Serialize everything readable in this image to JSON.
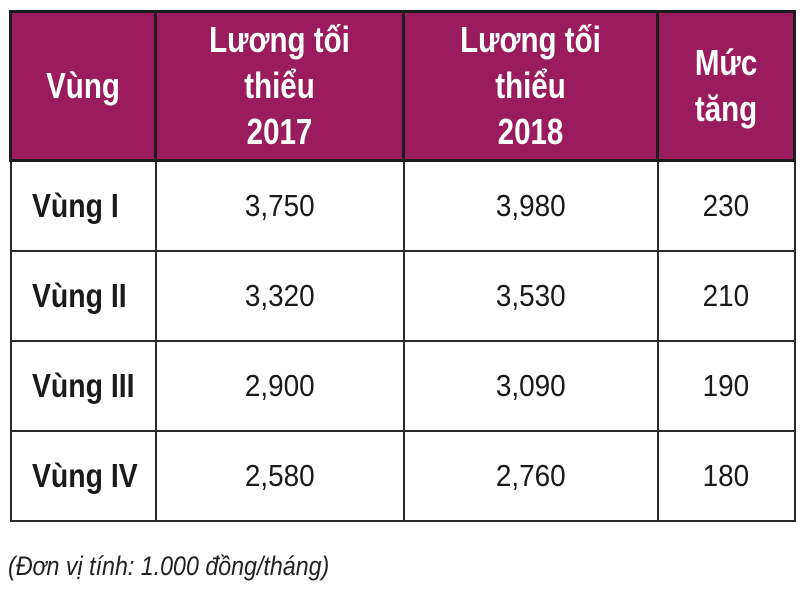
{
  "table": {
    "headers": [
      "Vùng",
      "Lương tối thiểu\n2017",
      "Lương tối thiểu\n2018",
      "Mức\ntăng"
    ],
    "rows": [
      {
        "region": "Vùng I",
        "wage_2017": "3,750",
        "wage_2018": "3,980",
        "increase": "230"
      },
      {
        "region": "Vùng II",
        "wage_2017": "3,320",
        "wage_2018": "3,530",
        "increase": "210"
      },
      {
        "region": "Vùng III",
        "wage_2017": "2,900",
        "wage_2018": "3,090",
        "increase": "190"
      },
      {
        "region": "Vùng IV",
        "wage_2017": "2,580",
        "wage_2018": "2,760",
        "increase": "180"
      }
    ]
  },
  "note": "(Đơn vị tính: 1.000 đồng/tháng)",
  "colors": {
    "header_background": "#9a1b5e",
    "header_text": "#ffffff",
    "border": "#1c1c1c"
  }
}
